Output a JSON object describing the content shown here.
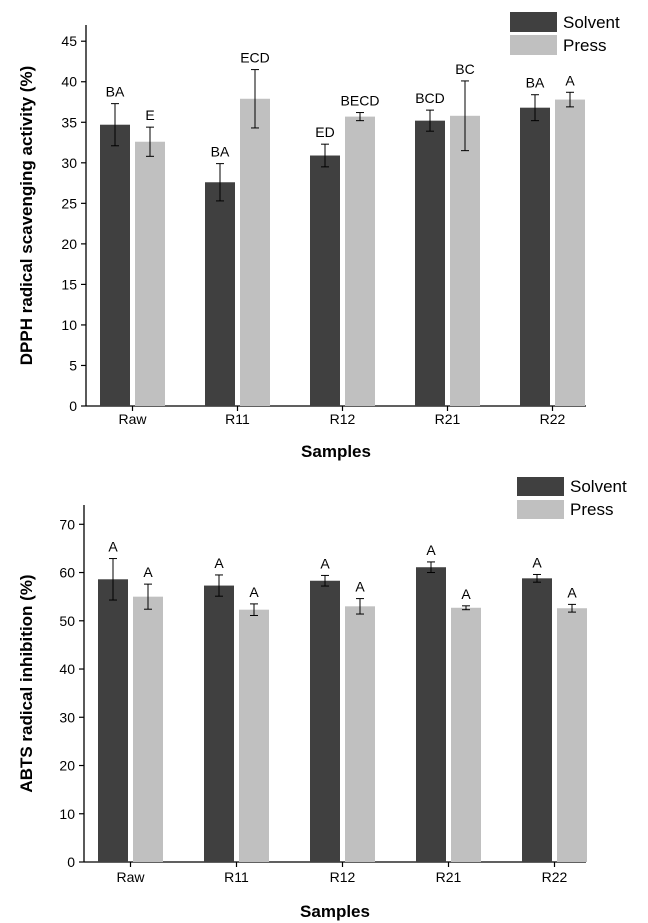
{
  "chart_data": [
    {
      "type": "bar",
      "categories": [
        "Raw",
        "R11",
        "R12",
        "R21",
        "R22"
      ],
      "series": [
        {
          "name": "Solvent",
          "color": "#404040",
          "values": [
            34.7,
            27.6,
            30.9,
            35.2,
            36.8
          ],
          "errors": [
            2.6,
            2.3,
            1.4,
            1.3,
            1.6
          ],
          "letters": [
            "BA",
            "BA",
            "ED",
            "BCD",
            "BA"
          ]
        },
        {
          "name": "Press",
          "color": "#c0c0c0",
          "values": [
            32.6,
            37.9,
            35.7,
            35.8,
            37.8
          ],
          "errors": [
            1.8,
            3.6,
            0.5,
            4.3,
            0.9
          ],
          "letters": [
            "E",
            "ECD",
            "BECD",
            "BC",
            "A"
          ]
        }
      ],
      "title": "",
      "xlabel": "Samples",
      "ylabel": "DPPH radical scavenging activity (%)",
      "ylim": [
        0,
        47
      ],
      "yticks": [
        "0",
        "5",
        "10",
        "15",
        "20",
        "25",
        "30",
        "35",
        "40",
        "45"
      ],
      "legend": "top-right",
      "grid": false
    },
    {
      "type": "bar",
      "categories": [
        "Raw",
        "R11",
        "R12",
        "R21",
        "R22"
      ],
      "series": [
        {
          "name": "Solvent",
          "color": "#404040",
          "values": [
            58.6,
            57.3,
            58.3,
            61.1,
            58.8
          ],
          "errors": [
            4.3,
            2.2,
            1.1,
            1.1,
            0.8
          ],
          "letters": [
            "A",
            "A",
            "A",
            "A",
            "A"
          ]
        },
        {
          "name": "Press",
          "color": "#c0c0c0",
          "values": [
            55.0,
            52.3,
            53.0,
            52.7,
            52.6
          ],
          "errors": [
            2.6,
            1.2,
            1.6,
            0.4,
            0.8
          ],
          "letters": [
            "A",
            "A",
            "A",
            "A",
            "A"
          ]
        }
      ],
      "title": "",
      "xlabel": "Samples",
      "ylabel": "ABTS radical inhibition (%)",
      "ylim": [
        0,
        74
      ],
      "yticks": [
        "0",
        "10",
        "20",
        "30",
        "40",
        "50",
        "60",
        "70"
      ],
      "legend": "top-right",
      "grid": false
    }
  ]
}
